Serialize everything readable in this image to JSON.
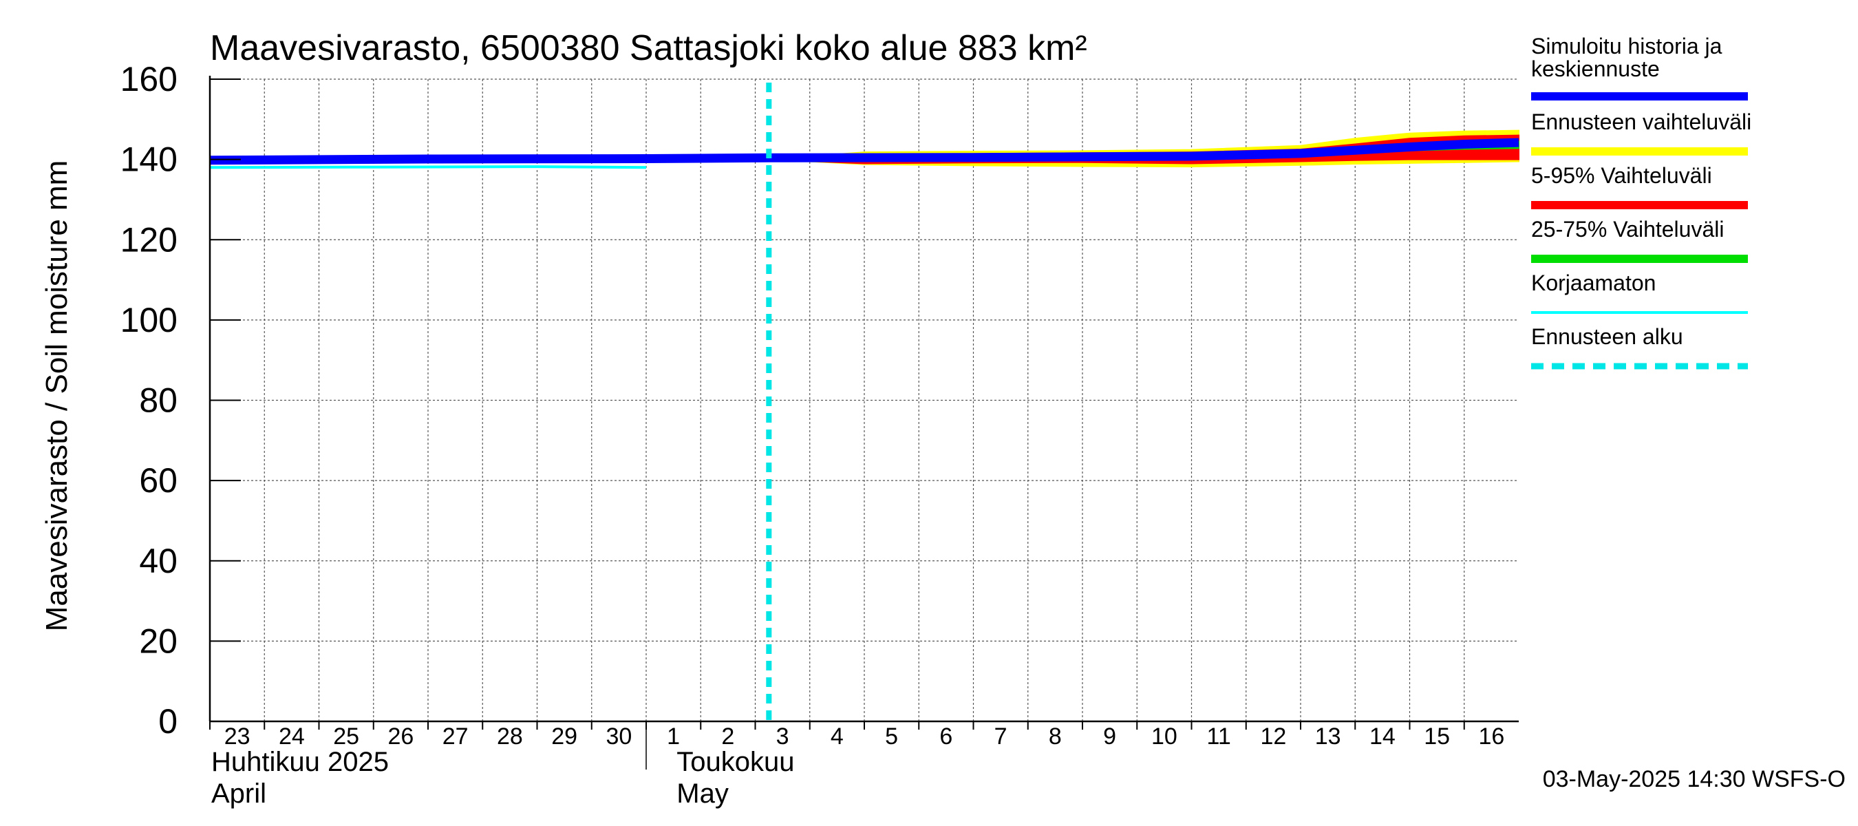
{
  "chart_data": {
    "type": "area",
    "title": "Maavesivarasto, 6500380 Sattasjoki koko alue 883 km²",
    "ylabel": "Maavesivarasto / Soil moisture   mm",
    "ylim": [
      0,
      160
    ],
    "yticks": [
      0,
      20,
      40,
      60,
      80,
      100,
      120,
      140,
      160
    ],
    "xlim": [
      "2025-04-23",
      "2025-05-16T24:00"
    ],
    "xticks": [
      {
        "date": "2025-04-23",
        "label": "23"
      },
      {
        "date": "2025-04-24",
        "label": "24"
      },
      {
        "date": "2025-04-25",
        "label": "25"
      },
      {
        "date": "2025-04-26",
        "label": "26"
      },
      {
        "date": "2025-04-27",
        "label": "27"
      },
      {
        "date": "2025-04-28",
        "label": "28"
      },
      {
        "date": "2025-04-29",
        "label": "29"
      },
      {
        "date": "2025-04-30",
        "label": "30"
      },
      {
        "date": "2025-05-01",
        "label": "1"
      },
      {
        "date": "2025-05-02",
        "label": "2"
      },
      {
        "date": "2025-05-03",
        "label": "3"
      },
      {
        "date": "2025-05-04",
        "label": "4"
      },
      {
        "date": "2025-05-05",
        "label": "5"
      },
      {
        "date": "2025-05-06",
        "label": "6"
      },
      {
        "date": "2025-05-07",
        "label": "7"
      },
      {
        "date": "2025-05-08",
        "label": "8"
      },
      {
        "date": "2025-05-09",
        "label": "9"
      },
      {
        "date": "2025-05-10",
        "label": "10"
      },
      {
        "date": "2025-05-11",
        "label": "11"
      },
      {
        "date": "2025-05-12",
        "label": "12"
      },
      {
        "date": "2025-05-13",
        "label": "13"
      },
      {
        "date": "2025-05-14",
        "label": "14"
      },
      {
        "date": "2025-05-15",
        "label": "15"
      },
      {
        "date": "2025-05-16",
        "label": "16"
      }
    ],
    "month_labels": [
      {
        "date": "2025-04-23",
        "line1": "Huhtikuu  2025",
        "line2": "April"
      },
      {
        "date": "2025-05-02",
        "line1": "Toukokuu",
        "line2": "May"
      }
    ],
    "grid": true,
    "legend_position": "right",
    "forecast_start": "2025-05-03T06:00",
    "series": [
      {
        "name": "Ennusteen vaihteluväli",
        "kind": "band",
        "color": "#ffff00",
        "x": [
          "2025-05-03T06:00",
          "2025-05-05",
          "2025-05-07",
          "2025-05-09",
          "2025-05-11",
          "2025-05-13",
          "2025-05-14",
          "2025-05-15",
          "2025-05-16",
          "2025-05-16T24:00"
        ],
        "low": [
          140,
          138.8,
          138.5,
          138.3,
          138.2,
          138.6,
          138.9,
          139.1,
          139.3,
          139.5
        ],
        "high": [
          140,
          141.8,
          142.0,
          142.1,
          142.4,
          143.4,
          145.2,
          146.5,
          147.0,
          147.2
        ]
      },
      {
        "name": "5-95% Vaihteluväli",
        "kind": "band",
        "color": "#ff0000",
        "x": [
          "2025-05-03T06:00",
          "2025-05-05",
          "2025-05-07",
          "2025-05-09",
          "2025-05-11",
          "2025-05-13",
          "2025-05-14",
          "2025-05-15",
          "2025-05-16",
          "2025-05-16T24:00"
        ],
        "low": [
          140,
          139.0,
          139.2,
          139.3,
          139.0,
          139.5,
          139.8,
          140.0,
          140.0,
          140.0
        ],
        "high": [
          140,
          141.3,
          141.4,
          141.6,
          141.8,
          142.5,
          143.8,
          145.2,
          145.8,
          146.0
        ]
      },
      {
        "name": "25-75% Vaihteluväli",
        "kind": "band",
        "color": "#00dd00",
        "x": [
          "2025-05-03T06:00",
          "2025-05-05",
          "2025-05-07",
          "2025-05-09",
          "2025-05-11",
          "2025-05-13",
          "2025-05-14",
          "2025-05-15",
          "2025-05-16",
          "2025-05-16T24:00"
        ],
        "low": [
          140,
          140.2,
          140.3,
          140.4,
          140.5,
          141.0,
          141.6,
          142.2,
          142.6,
          142.8
        ],
        "high": [
          140,
          140.8,
          140.9,
          141.0,
          141.2,
          142.0,
          142.8,
          143.6,
          144.2,
          144.5
        ]
      },
      {
        "name": "Simuloitu historia ja keskiennuste",
        "kind": "line",
        "color": "#0000ff",
        "x": [
          "2025-04-23",
          "2025-04-27",
          "2025-05-01",
          "2025-05-03T06:00",
          "2025-05-07",
          "2025-05-11",
          "2025-05-13",
          "2025-05-14",
          "2025-05-15",
          "2025-05-16",
          "2025-05-16T24:00"
        ],
        "y": [
          139.8,
          140.1,
          140.2,
          140.4,
          140.5,
          140.8,
          141.5,
          142.3,
          143.1,
          143.8,
          144.2
        ]
      },
      {
        "name": "Korjaamaton",
        "kind": "line",
        "color": "#00ffff",
        "x": [
          "2025-04-23",
          "2025-04-26",
          "2025-04-29",
          "2025-05-01"
        ],
        "y": [
          138.0,
          138.1,
          138.2,
          138.0
        ]
      }
    ]
  },
  "legend": [
    {
      "label": "Simuloitu historia ja keskiennuste",
      "color": "#0000ff",
      "style": "solid-thick"
    },
    {
      "label": "Ennusteen vaihteluväli",
      "color": "#ffff00",
      "style": "solid-thick"
    },
    {
      "label": "5-95% Vaihteluväli",
      "color": "#ff0000",
      "style": "solid-thick"
    },
    {
      "label": "25-75% Vaihteluväli",
      "color": "#00dd00",
      "style": "solid-thick"
    },
    {
      "label": "Korjaamaton",
      "color": "#00ffff",
      "style": "solid-thin"
    },
    {
      "label": "Ennusteen alku",
      "color": "#00e5e5",
      "style": "dashed"
    }
  ],
  "footer": "03-May-2025 14:30 WSFS-O"
}
